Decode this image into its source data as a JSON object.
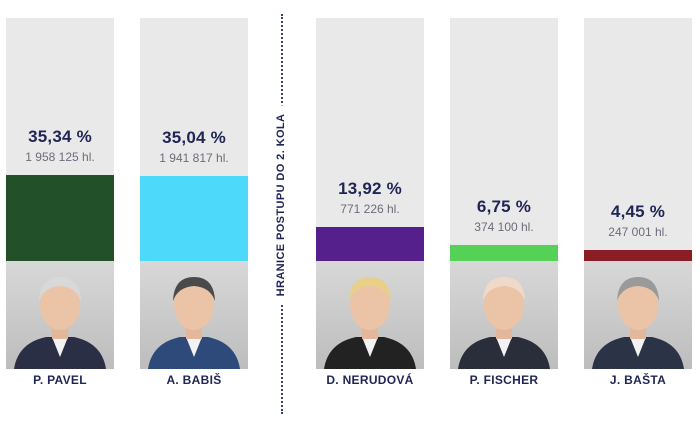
{
  "threshold_label": "HRANICE POSTUPU DO 2. KOLA",
  "chart_data": {
    "type": "bar",
    "categories": [
      "P. PAVEL",
      "A. BABIŠ",
      "D. NERUDOVÁ",
      "P. FISCHER",
      "J. BAŠTA"
    ],
    "values": [
      35.34,
      35.04,
      13.92,
      6.75,
      4.45
    ],
    "value_labels": [
      "35,34 %",
      "35,04 %",
      "13,92 %",
      "6,75 %",
      "4,45 %"
    ],
    "vote_labels": [
      "1 958 125 hl.",
      "1 941 817 hl.",
      "771 226 hl.",
      "374 100 hl.",
      "247 001 hl."
    ],
    "colors": [
      "#225129",
      "#4dd9fa",
      "#55208c",
      "#56d157",
      "#8b1d24"
    ],
    "ylim": [
      0,
      100
    ],
    "grid": false,
    "legend": "none"
  }
}
